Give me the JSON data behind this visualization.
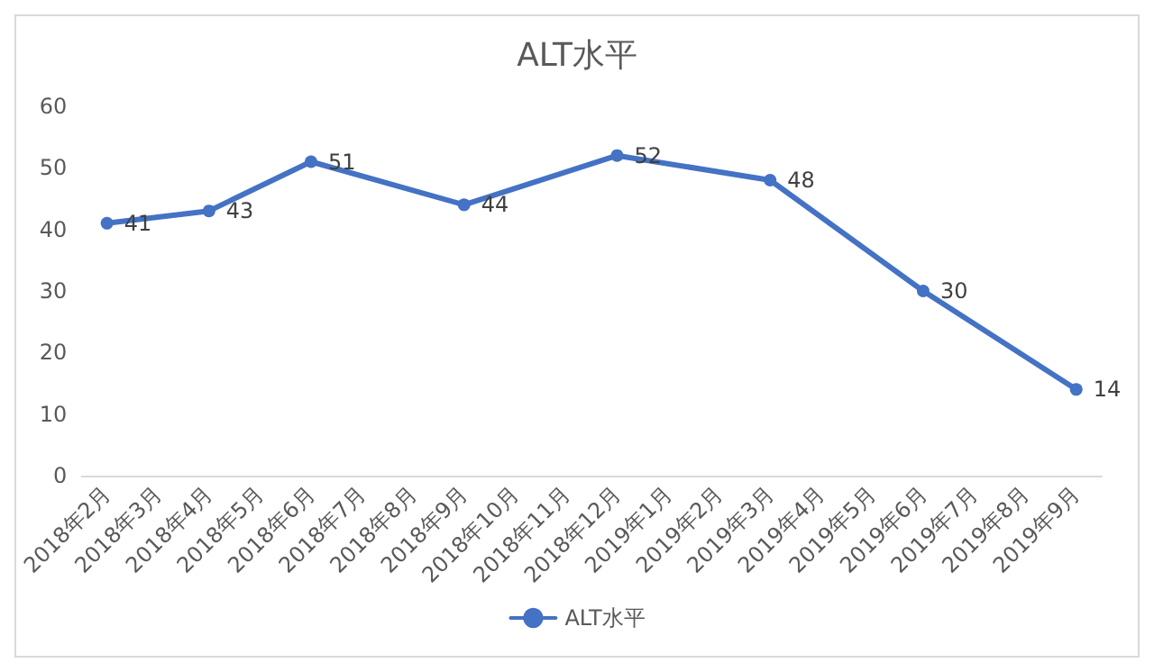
{
  "chart_data": {
    "type": "line",
    "title": "ALT水平",
    "categories": [
      "2018年2月",
      "2018年3月",
      "2018年4月",
      "2018年5月",
      "2018年6月",
      "2018年7月",
      "2018年8月",
      "2018年9月",
      "2018年10月",
      "2018年11月",
      "2018年12月",
      "2019年1月",
      "2019年2月",
      "2019年3月",
      "2019年4月",
      "2019年5月",
      "2019年6月",
      "2019年7月",
      "2019年8月",
      "2019年9月"
    ],
    "series": [
      {
        "name": "ALT水平",
        "color": "#4472c4",
        "values": [
          41,
          null,
          43,
          null,
          51,
          null,
          null,
          44,
          null,
          null,
          52,
          null,
          null,
          48,
          null,
          null,
          30,
          null,
          null,
          14
        ]
      }
    ],
    "ylim": [
      0,
      60
    ],
    "yticks": [
      0,
      10,
      20,
      30,
      40,
      50,
      60
    ],
    "grid": false,
    "legend": "bottom",
    "marker": "circle",
    "line_style": "solid",
    "data_labels": true
  }
}
